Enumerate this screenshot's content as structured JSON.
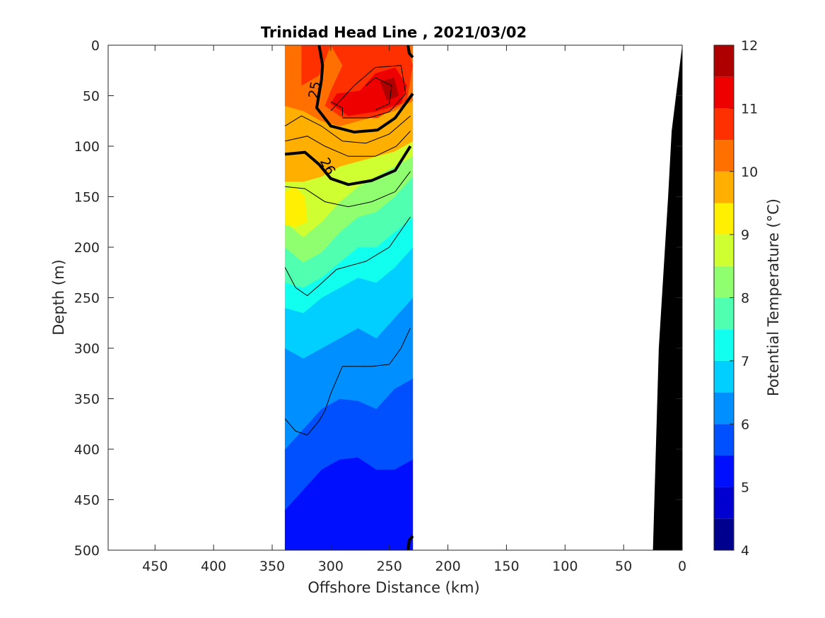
{
  "chart_data": {
    "type": "heatmap",
    "title": "Trinidad Head Line , 2021/03/02",
    "xlabel": "Offshore Distance (km)",
    "ylabel": "Depth (m)",
    "xlim": [
      490,
      0
    ],
    "ylim": [
      0,
      500
    ],
    "x_reversed": true,
    "y_reversed": true,
    "xticks": [
      450,
      400,
      350,
      300,
      250,
      200,
      150,
      100,
      50,
      0
    ],
    "yticks": [
      0,
      50,
      100,
      150,
      200,
      250,
      300,
      350,
      400,
      450,
      500
    ],
    "data_extent": {
      "x_from": 339,
      "x_to": 230
    },
    "colorbar": {
      "label": "Potential Temperature (°C)",
      "ticks": [
        4,
        5,
        6,
        7,
        8,
        9,
        10,
        11,
        12
      ],
      "levels": [
        4,
        4.5,
        5,
        5.5,
        6,
        6.5,
        7,
        7.5,
        8,
        8.5,
        9,
        9.5,
        10,
        10.5,
        11,
        11.5,
        12
      ],
      "colors": [
        "#00008f",
        "#0000d0",
        "#0010ff",
        "#0050ff",
        "#008fff",
        "#00cfff",
        "#10ffef",
        "#50ffaf",
        "#8fff70",
        "#cfff30",
        "#ffef00",
        "#ffaf00",
        "#ff7000",
        "#ff3000",
        "#ef0000",
        "#af0000"
      ]
    },
    "temperature_bands": [
      {
        "value": 5.25,
        "depth_top": [
          460,
          440,
          420,
          410,
          408,
          420,
          420,
          410
        ],
        "depth_bottom": [
          500,
          500,
          500,
          500,
          500,
          500,
          500,
          500
        ]
      },
      {
        "value": 5.75,
        "depth_top": [
          400,
          380,
          360,
          350,
          352,
          360,
          340,
          330
        ],
        "depth_bottom": [
          460,
          440,
          420,
          410,
          408,
          420,
          420,
          410
        ]
      },
      {
        "value": 6.25,
        "depth_top": [
          300,
          310,
          300,
          290,
          280,
          290,
          270,
          250
        ],
        "depth_bottom": [
          400,
          380,
          360,
          350,
          352,
          360,
          340,
          330
        ]
      },
      {
        "value": 6.75,
        "depth_top": [
          260,
          265,
          250,
          240,
          230,
          235,
          220,
          200
        ],
        "depth_bottom": [
          300,
          310,
          300,
          290,
          280,
          290,
          270,
          250
        ]
      },
      {
        "value": 7.25,
        "depth_top": [
          235,
          240,
          230,
          215,
          200,
          200,
          185,
          170
        ],
        "depth_bottom": [
          260,
          265,
          250,
          240,
          230,
          235,
          220,
          200
        ]
      },
      {
        "value": 7.75,
        "depth_top": [
          200,
          215,
          205,
          185,
          170,
          165,
          150,
          130
        ],
        "depth_bottom": [
          235,
          240,
          230,
          215,
          200,
          200,
          185,
          170
        ]
      },
      {
        "value": 8.25,
        "depth_top": [
          175,
          190,
          175,
          155,
          140,
          130,
          120,
          110
        ],
        "depth_bottom": [
          200,
          215,
          205,
          185,
          170,
          165,
          150,
          130
        ]
      },
      {
        "value": 8.75,
        "depth_top": [
          135,
          135,
          130,
          120,
          115,
          110,
          105,
          95
        ],
        "depth_bottom": [
          175,
          190,
          175,
          155,
          140,
          130,
          120,
          110
        ]
      },
      {
        "value": 9.75,
        "depth_top": [
          60,
          65,
          75,
          80,
          75,
          70,
          65,
          55
        ],
        "depth_bottom": [
          135,
          135,
          130,
          120,
          115,
          110,
          105,
          95
        ]
      },
      {
        "value": 10.25,
        "depth_top": [
          0,
          0,
          0,
          0,
          0,
          0,
          0,
          0
        ],
        "depth_bottom": [
          60,
          65,
          75,
          80,
          75,
          70,
          65,
          55
        ]
      }
    ],
    "warm_core_polygons": [
      {
        "value": 10.75,
        "points": [
          [
            325,
            0
          ],
          [
            300,
            0
          ],
          [
            290,
            20
          ],
          [
            300,
            45
          ],
          [
            305,
            60
          ],
          [
            290,
            72
          ],
          [
            260,
            72
          ],
          [
            235,
            55
          ],
          [
            230,
            20
          ],
          [
            235,
            0
          ],
          [
            300,
            0
          ],
          [
            310,
            30
          ],
          [
            325,
            40
          ]
        ]
      },
      {
        "value": 11.25,
        "points": [
          [
            300,
            58
          ],
          [
            295,
            48
          ],
          [
            275,
            45
          ],
          [
            262,
            28
          ],
          [
            245,
            22
          ],
          [
            235,
            40
          ],
          [
            240,
            58
          ],
          [
            262,
            66
          ],
          [
            285,
            70
          ]
        ]
      },
      {
        "value": 11.75,
        "points": [
          [
            258,
            36
          ],
          [
            246,
            32
          ],
          [
            242,
            50
          ],
          [
            252,
            55
          ]
        ]
      }
    ],
    "warm_patch_at_depth": {
      "value": 9.25,
      "points": [
        [
          339,
          145
        ],
        [
          330,
          140
        ],
        [
          322,
          150
        ],
        [
          320,
          175
        ],
        [
          330,
          180
        ],
        [
          339,
          178
        ]
      ]
    },
    "isopycnals": [
      {
        "label": "25",
        "bold": true,
        "points": [
          [
            310,
            0
          ],
          [
            307,
            20
          ],
          [
            308,
            35
          ],
          [
            312,
            62
          ],
          [
            300,
            80
          ],
          [
            280,
            86
          ],
          [
            260,
            84
          ],
          [
            245,
            72
          ],
          [
            230,
            48
          ]
        ]
      },
      {
        "label": "26",
        "bold": true,
        "points": [
          [
            339,
            108
          ],
          [
            322,
            106
          ],
          [
            310,
            118
          ],
          [
            300,
            132
          ],
          [
            285,
            138
          ],
          [
            265,
            134
          ],
          [
            245,
            124
          ],
          [
            232,
            100
          ]
        ]
      },
      {
        "label": "",
        "bold": true,
        "points": [
          [
            234,
            0
          ],
          [
            233,
            8
          ],
          [
            230,
            12
          ]
        ]
      },
      {
        "label": "",
        "bold": true,
        "points": [
          [
            234,
            500
          ],
          [
            233,
            490
          ],
          [
            230,
            486
          ]
        ]
      }
    ],
    "thin_contours": [
      {
        "points": [
          [
            339,
            80
          ],
          [
            325,
            70
          ],
          [
            308,
            80
          ],
          [
            290,
            95
          ],
          [
            270,
            97
          ],
          [
            250,
            88
          ],
          [
            232,
            70
          ]
        ]
      },
      {
        "points": [
          [
            339,
            95
          ],
          [
            320,
            90
          ],
          [
            305,
            100
          ],
          [
            285,
            110
          ],
          [
            262,
            110
          ],
          [
            244,
            100
          ],
          [
            232,
            85
          ]
        ]
      },
      {
        "points": [
          [
            339,
            140
          ],
          [
            322,
            142
          ],
          [
            305,
            155
          ],
          [
            285,
            160
          ],
          [
            265,
            155
          ],
          [
            245,
            145
          ],
          [
            232,
            125
          ]
        ]
      },
      {
        "points": [
          [
            339,
            220
          ],
          [
            330,
            240
          ],
          [
            320,
            248
          ],
          [
            310,
            238
          ],
          [
            295,
            222
          ],
          [
            270,
            214
          ],
          [
            250,
            200
          ],
          [
            232,
            170
          ]
        ]
      },
      {
        "points": [
          [
            339,
            370
          ],
          [
            330,
            382
          ],
          [
            320,
            386
          ],
          [
            310,
            372
          ],
          [
            305,
            362
          ],
          [
            300,
            345
          ],
          [
            290,
            318
          ],
          [
            265,
            318
          ],
          [
            250,
            316
          ],
          [
            240,
            300
          ],
          [
            232,
            280
          ]
        ]
      },
      {
        "points": [
          [
            290,
            70
          ],
          [
            290,
            62
          ],
          [
            300,
            56
          ]
        ]
      },
      {
        "points": [
          [
            262,
            64
          ],
          [
            250,
            58
          ],
          [
            248,
            40
          ],
          [
            262,
            32
          ],
          [
            270,
            40
          ]
        ]
      },
      {
        "points": [
          [
            300,
            65
          ],
          [
            280,
            40
          ],
          [
            262,
            22
          ],
          [
            240,
            20
          ],
          [
            236,
            48
          ],
          [
            250,
            66
          ],
          [
            268,
            72
          ],
          [
            290,
            72
          ]
        ]
      }
    ],
    "bathymetry": {
      "color": "#000000",
      "profile": [
        [
          25,
          500
        ],
        [
          20,
          300
        ],
        [
          12,
          150
        ],
        [
          9,
          85
        ],
        [
          0,
          0
        ],
        [
          0,
          500
        ]
      ]
    }
  }
}
